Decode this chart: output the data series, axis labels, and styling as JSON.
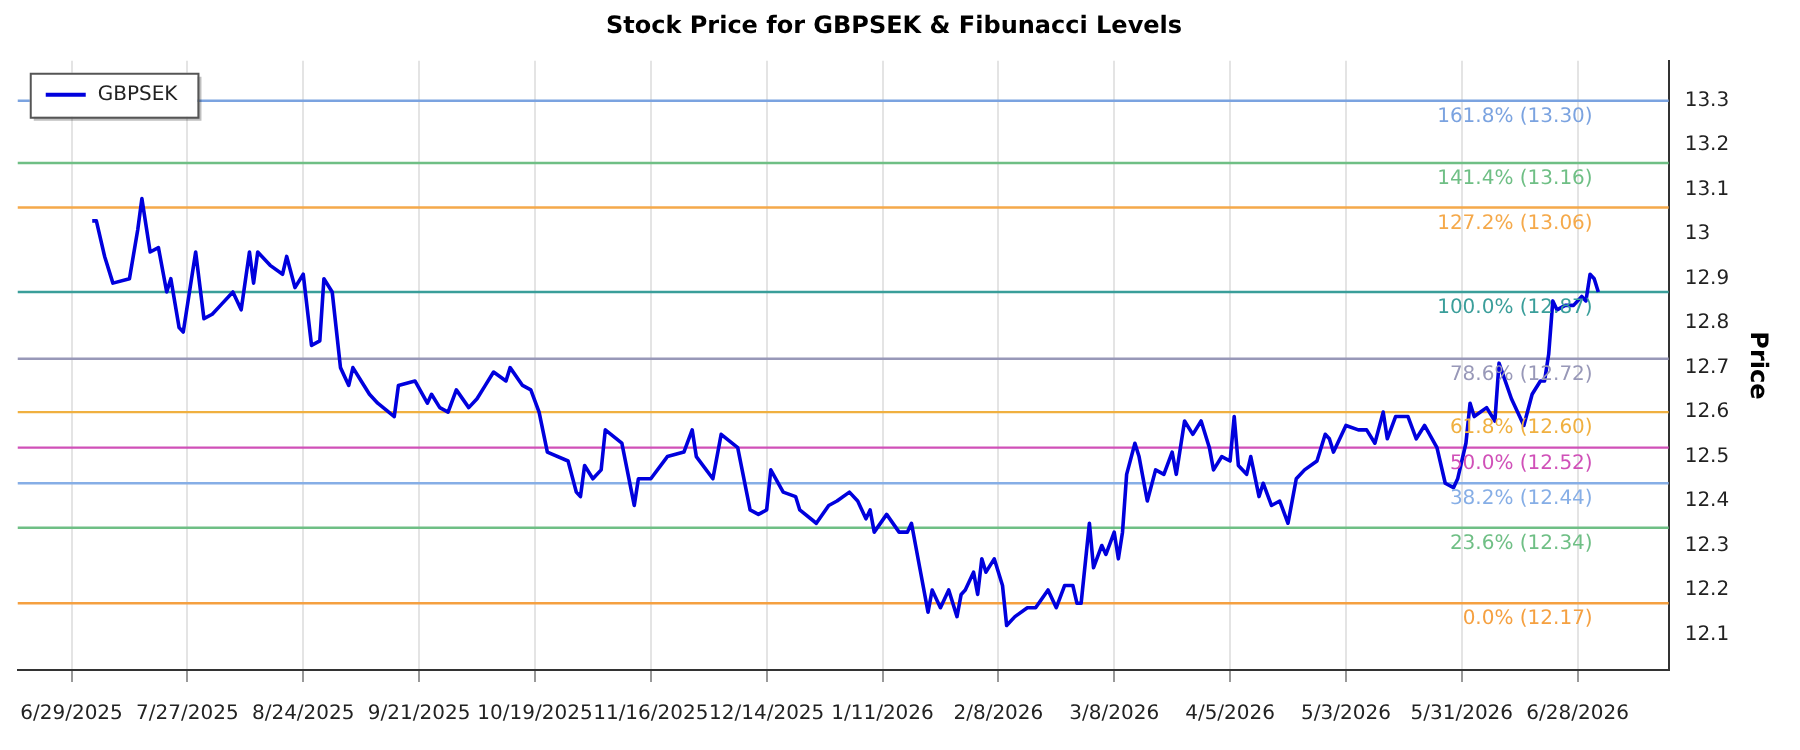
{
  "chart_data": {
    "type": "line",
    "title": "Stock Price for GBPSEK & Fibunacci Levels",
    "ylabel": "Price",
    "x": [
      "2025-07-04",
      "2025-07-05",
      "2025-07-07",
      "2025-07-09",
      "2025-07-13",
      "2025-07-15",
      "2025-07-16",
      "2025-07-18",
      "2025-07-20",
      "2025-07-22",
      "2025-07-23",
      "2025-07-25",
      "2025-07-26",
      "2025-07-29",
      "2025-07-31",
      "2025-08-02",
      "2025-08-04",
      "2025-08-07",
      "2025-08-09",
      "2025-08-11",
      "2025-08-12",
      "2025-08-13",
      "2025-08-16",
      "2025-08-19",
      "2025-08-20",
      "2025-08-22",
      "2025-08-24",
      "2025-08-26",
      "2025-08-28",
      "2025-08-29",
      "2025-08-31",
      "2025-09-02",
      "2025-09-04",
      "2025-09-05",
      "2025-09-07",
      "2025-09-09",
      "2025-09-11",
      "2025-09-15",
      "2025-09-16",
      "2025-09-20",
      "2025-09-23",
      "2025-09-24",
      "2025-09-26",
      "2025-09-28",
      "2025-09-30",
      "2025-10-03",
      "2025-10-05",
      "2025-10-07",
      "2025-10-09",
      "2025-10-12",
      "2025-10-13",
      "2025-10-16",
      "2025-10-18",
      "2025-10-20",
      "2025-10-22",
      "2025-10-27",
      "2025-10-29",
      "2025-10-30",
      "2025-10-31",
      "2025-11-02",
      "2025-11-04",
      "2025-11-05",
      "2025-11-09",
      "2025-11-12",
      "2025-11-13",
      "2025-11-16",
      "2025-11-20",
      "2025-11-24",
      "2025-11-26",
      "2025-11-27",
      "2025-12-01",
      "2025-12-03",
      "2025-12-07",
      "2025-12-10",
      "2025-12-12",
      "2025-12-14",
      "2025-12-15",
      "2025-12-18",
      "2025-12-21",
      "2025-12-22",
      "2025-12-26",
      "2025-12-29",
      "2025-12-31",
      "2026-01-03",
      "2026-01-05",
      "2026-01-07",
      "2026-01-08",
      "2026-01-09",
      "2026-01-12",
      "2026-01-15",
      "2026-01-17",
      "2026-01-18",
      "2026-01-20",
      "2026-01-22",
      "2026-01-23",
      "2026-01-25",
      "2026-01-27",
      "2026-01-29",
      "2026-01-30",
      "2026-01-31",
      "2026-02-02",
      "2026-02-03",
      "2026-02-04",
      "2026-02-05",
      "2026-02-07",
      "2026-02-09",
      "2026-02-10",
      "2026-02-12",
      "2026-02-15",
      "2026-02-17",
      "2026-02-20",
      "2026-02-22",
      "2026-02-24",
      "2026-02-26",
      "2026-02-27",
      "2026-02-28",
      "2026-03-02",
      "2026-03-03",
      "2026-03-05",
      "2026-03-06",
      "2026-03-08",
      "2026-03-09",
      "2026-03-10",
      "2026-03-11",
      "2026-03-13",
      "2026-03-14",
      "2026-03-16",
      "2026-03-18",
      "2026-03-20",
      "2026-03-22",
      "2026-03-23",
      "2026-03-25",
      "2026-03-27",
      "2026-03-29",
      "2026-03-31",
      "2026-04-01",
      "2026-04-03",
      "2026-04-05",
      "2026-04-06",
      "2026-04-07",
      "2026-04-09",
      "2026-04-10",
      "2026-04-12",
      "2026-04-13",
      "2026-04-15",
      "2026-04-17",
      "2026-04-19",
      "2026-04-21",
      "2026-04-23",
      "2026-04-26",
      "2026-04-28",
      "2026-04-29",
      "2026-04-30",
      "2026-05-03",
      "2026-05-06",
      "2026-05-08",
      "2026-05-10",
      "2026-05-12",
      "2026-05-13",
      "2026-05-15",
      "2026-05-18",
      "2026-05-20",
      "2026-05-22",
      "2026-05-25",
      "2026-05-27",
      "2026-05-29",
      "2026-05-30",
      "2026-06-01",
      "2026-06-02",
      "2026-06-03",
      "2026-06-06",
      "2026-06-08",
      "2026-06-09",
      "2026-06-12",
      "2026-06-15",
      "2026-06-17",
      "2026-06-19",
      "2026-06-20",
      "2026-06-21",
      "2026-06-22",
      "2026-06-23",
      "2026-06-25",
      "2026-06-27",
      "2026-06-29",
      "2026-06-30",
      "2026-07-01",
      "2026-07-02",
      "2026-07-03"
    ],
    "series": [
      {
        "name": "GBPSEK",
        "color": "#0000dd",
        "values": [
          13.03,
          13.03,
          12.95,
          12.89,
          12.9,
          13.01,
          13.08,
          12.96,
          12.97,
          12.87,
          12.9,
          12.79,
          12.78,
          12.96,
          12.81,
          12.82,
          12.84,
          12.87,
          12.83,
          12.96,
          12.89,
          12.96,
          12.93,
          12.91,
          12.95,
          12.88,
          12.91,
          12.75,
          12.76,
          12.9,
          12.87,
          12.7,
          12.66,
          12.7,
          12.67,
          12.64,
          12.62,
          12.59,
          12.66,
          12.67,
          12.62,
          12.64,
          12.61,
          12.6,
          12.65,
          12.61,
          12.63,
          12.66,
          12.69,
          12.67,
          12.7,
          12.66,
          12.65,
          12.6,
          12.51,
          12.49,
          12.42,
          12.41,
          12.48,
          12.45,
          12.47,
          12.56,
          12.53,
          12.39,
          12.45,
          12.45,
          12.5,
          12.51,
          12.56,
          12.5,
          12.45,
          12.55,
          12.52,
          12.38,
          12.37,
          12.38,
          12.47,
          12.42,
          12.41,
          12.38,
          12.35,
          12.39,
          12.4,
          12.42,
          12.4,
          12.36,
          12.38,
          12.33,
          12.37,
          12.33,
          12.33,
          12.35,
          12.25,
          12.15,
          12.2,
          12.16,
          12.2,
          12.14,
          12.19,
          12.2,
          12.24,
          12.19,
          12.27,
          12.24,
          12.27,
          12.21,
          12.12,
          12.14,
          12.16,
          12.16,
          12.2,
          12.16,
          12.21,
          12.21,
          12.17,
          12.17,
          12.35,
          12.25,
          12.3,
          12.28,
          12.33,
          12.27,
          12.33,
          12.46,
          12.53,
          12.5,
          12.4,
          12.47,
          12.46,
          12.51,
          12.46,
          12.58,
          12.55,
          12.58,
          12.52,
          12.47,
          12.5,
          12.49,
          12.59,
          12.48,
          12.46,
          12.5,
          12.41,
          12.44,
          12.39,
          12.4,
          12.35,
          12.45,
          12.47,
          12.49,
          12.55,
          12.54,
          12.51,
          12.57,
          12.56,
          12.56,
          12.53,
          12.6,
          12.54,
          12.59,
          12.59,
          12.54,
          12.57,
          12.52,
          12.44,
          12.43,
          12.45,
          12.53,
          12.62,
          12.59,
          12.61,
          12.58,
          12.71,
          12.63,
          12.57,
          12.64,
          12.67,
          12.67,
          12.73,
          12.85,
          12.83,
          12.84,
          12.84,
          12.86,
          12.85,
          12.91,
          12.9,
          12.87
        ]
      }
    ],
    "xlim": [
      "2025-06-16",
      "2026-07-20"
    ],
    "xticks": [
      {
        "value": "2025-06-29",
        "label": "6/29/2025"
      },
      {
        "value": "2025-07-27",
        "label": "7/27/2025"
      },
      {
        "value": "2025-08-24",
        "label": "8/24/2025"
      },
      {
        "value": "2025-09-21",
        "label": "9/21/2025"
      },
      {
        "value": "2025-10-19",
        "label": "10/19/2025"
      },
      {
        "value": "2025-11-16",
        "label": "11/16/2025"
      },
      {
        "value": "2025-12-14",
        "label": "12/14/2025"
      },
      {
        "value": "2026-01-11",
        "label": "1/11/2026"
      },
      {
        "value": "2026-02-08",
        "label": "2/8/2026"
      },
      {
        "value": "2026-03-08",
        "label": "3/8/2026"
      },
      {
        "value": "2026-04-05",
        "label": "4/5/2026"
      },
      {
        "value": "2026-05-03",
        "label": "5/3/2026"
      },
      {
        "value": "2026-05-31",
        "label": "5/31/2026"
      },
      {
        "value": "2026-06-28",
        "label": "6/28/2026"
      }
    ],
    "ylim": [
      12.02,
      13.39
    ],
    "yticks": [
      12.1,
      12.2,
      12.3,
      12.4,
      12.5,
      12.6,
      12.7,
      12.8,
      12.9,
      13,
      13.1,
      13.2,
      13.3
    ],
    "ref_lines": [
      {
        "axis": "y",
        "value": 13.3,
        "label": "161.8% (13.30)",
        "color": "#7ba3e0"
      },
      {
        "axis": "y",
        "value": 13.16,
        "label": "141.4% (13.16)",
        "color": "#6fbf85"
      },
      {
        "axis": "y",
        "value": 13.06,
        "label": "127.2% (13.06)",
        "color": "#f5a94a"
      },
      {
        "axis": "y",
        "value": 12.87,
        "label": "100.0% (12.87)",
        "color": "#3a9e9a"
      },
      {
        "axis": "y",
        "value": 12.72,
        "label": "78.6% (12.72)",
        "color": "#9898b8"
      },
      {
        "axis": "y",
        "value": 12.6,
        "label": "61.8% (12.60)",
        "color": "#f0b040"
      },
      {
        "axis": "y",
        "value": 12.52,
        "label": "50.0% (12.52)",
        "color": "#d050b8"
      },
      {
        "axis": "y",
        "value": 12.44,
        "label": "38.2% (12.44)",
        "color": "#86aee6"
      },
      {
        "axis": "y",
        "value": 12.34,
        "label": "23.6% (12.34)",
        "color": "#6fbf85"
      },
      {
        "axis": "y",
        "value": 12.17,
        "label": "0.0% (12.17)",
        "color": "#f5a040"
      }
    ],
    "grid": "x",
    "legend": "top left",
    "marker": "none",
    "line_style": "solid"
  }
}
